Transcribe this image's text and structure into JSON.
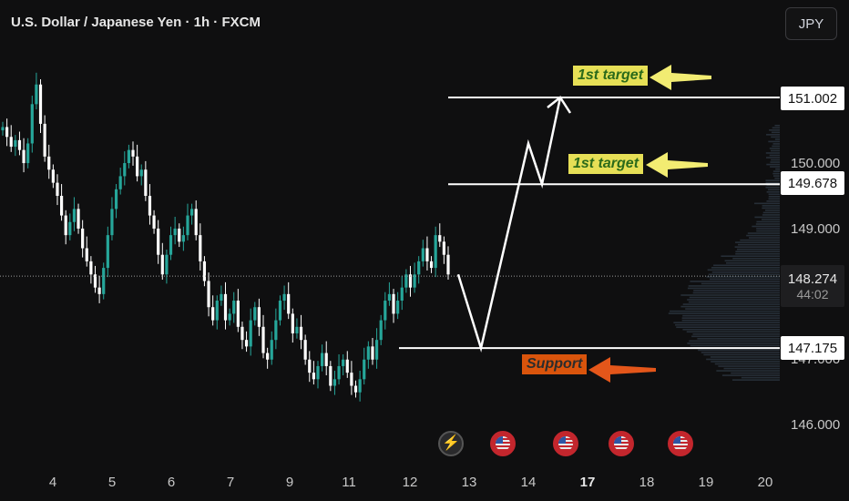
{
  "header": {
    "title": "U.S. Dollar / Japanese Yen · 1h · FXCM",
    "currency_button": "JPY"
  },
  "price_scale": {
    "labels": [
      "150.000",
      "149.000",
      "147.000",
      "146.000"
    ],
    "current_price": "148.274",
    "countdown": "44:02",
    "level_boxes": [
      "151.002",
      "149.678",
      "147.175"
    ]
  },
  "time_axis": {
    "labels": [
      "4",
      "5",
      "6",
      "7",
      "9",
      "11",
      "12",
      "13",
      "14",
      "17",
      "18",
      "19",
      "20"
    ]
  },
  "annotations": {
    "target_1_top": "1st target",
    "target_1_mid": "1st target",
    "support": "Support"
  },
  "event_icons": [
    "lightning-icon",
    "us-flag-icon",
    "us-flag-icon",
    "us-flag-icon",
    "us-flag-icon"
  ],
  "colors": {
    "background": "#0f0f10",
    "candle_up": "#26a69a",
    "candle_down": "#ffffff",
    "level_line": "#ffffff",
    "target_tag": "#e6df56",
    "support_tag": "#d9540c",
    "arrow_yellow": "#f2ec72",
    "arrow_orange": "#e4561a"
  },
  "chart_data": {
    "type": "candlestick",
    "symbol": "USDJPY",
    "interval": "1h",
    "ylim": [
      145.7,
      151.9
    ],
    "levels": [
      151.002,
      149.678,
      147.175
    ],
    "current_price": 148.274,
    "closes": [
      150.55,
      150.4,
      150.25,
      150.35,
      150.2,
      150.0,
      150.3,
      150.9,
      151.2,
      150.6,
      150.1,
      149.9,
      149.7,
      149.5,
      149.2,
      148.9,
      149.1,
      149.3,
      149.0,
      148.7,
      148.5,
      148.3,
      148.1,
      148.0,
      148.4,
      148.9,
      149.3,
      149.6,
      149.8,
      150.0,
      150.2,
      150.1,
      149.8,
      149.9,
      149.5,
      149.2,
      149.0,
      148.6,
      148.3,
      148.6,
      148.9,
      149.0,
      148.8,
      148.9,
      149.2,
      149.3,
      148.9,
      148.5,
      148.2,
      147.8,
      147.6,
      147.9,
      148.0,
      147.6,
      147.7,
      147.9,
      147.5,
      147.3,
      147.2,
      147.6,
      147.8,
      147.5,
      147.1,
      147.0,
      147.3,
      147.6,
      147.9,
      148.0,
      147.7,
      147.4,
      147.5,
      147.3,
      147.0,
      146.8,
      146.7,
      146.9,
      147.1,
      146.9,
      146.6,
      146.7,
      146.9,
      147.0,
      146.8,
      146.6,
      146.5,
      146.7,
      147.0,
      147.2,
      147.0,
      147.3,
      147.6,
      147.9,
      148.0,
      147.7,
      147.9,
      148.1,
      148.3,
      148.1,
      148.3,
      148.5,
      148.7,
      148.5,
      148.4,
      148.9,
      148.8,
      148.6,
      148.3
    ],
    "projection": [
      [
        148.3,
        0
      ],
      [
        147.175,
        1
      ],
      [
        150.3,
        2
      ],
      [
        149.678,
        3
      ],
      [
        151.002,
        4
      ]
    ]
  }
}
